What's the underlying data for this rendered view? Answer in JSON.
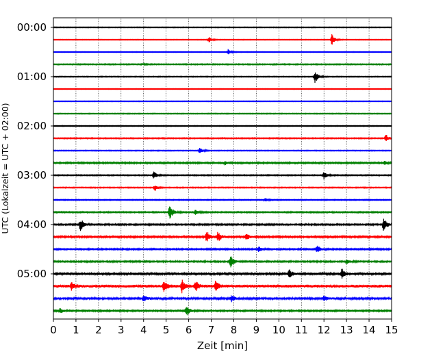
{
  "chart_data": {
    "type": "line",
    "title": "",
    "xlabel": "Zeit  [min]",
    "ylabel": "UTC (Lokalzeit = UTC + 02:00)",
    "xlim": [
      0,
      15
    ],
    "x_ticks": [
      "0",
      "1",
      "2",
      "3",
      "4",
      "5",
      "6",
      "7",
      "8",
      "9",
      "10",
      "11",
      "12",
      "13",
      "14",
      "15"
    ],
    "y_ticks": [
      "00:00",
      "01:00",
      "02:00",
      "03:00",
      "04:00",
      "05:00"
    ],
    "grid": {
      "x": true,
      "y": false
    },
    "trace_interval_minutes": 15,
    "trace_colors": [
      "#000000",
      "#ff0000",
      "#0000ff",
      "#008000"
    ],
    "traces": [
      {
        "start": "00:00",
        "color": "#000000",
        "noise": 0.35,
        "events": []
      },
      {
        "start": "00:15",
        "color": "#ff0000",
        "noise": 0.3,
        "events": [
          {
            "x": 6.9,
            "amp": 5
          },
          {
            "x": 12.35,
            "amp": 8
          }
        ]
      },
      {
        "start": "00:30",
        "color": "#0000ff",
        "noise": 0.3,
        "events": [
          {
            "x": 7.75,
            "amp": 4
          }
        ]
      },
      {
        "start": "00:45",
        "color": "#008000",
        "noise": 0.5,
        "events": [
          {
            "x": 3.9,
            "amp": 2
          }
        ]
      },
      {
        "start": "01:00",
        "color": "#000000",
        "noise": 0.4,
        "events": [
          {
            "x": 11.6,
            "amp": 10
          }
        ]
      },
      {
        "start": "01:15",
        "color": "#ff0000",
        "noise": 0.3,
        "events": []
      },
      {
        "start": "01:30",
        "color": "#0000ff",
        "noise": 0.3,
        "events": []
      },
      {
        "start": "01:45",
        "color": "#008000",
        "noise": 0.4,
        "events": []
      },
      {
        "start": "02:00",
        "color": "#000000",
        "noise": 0.35,
        "events": []
      },
      {
        "start": "02:15",
        "color": "#ff0000",
        "noise": 0.5,
        "events": [
          {
            "x": 14.75,
            "amp": 6
          }
        ]
      },
      {
        "start": "02:30",
        "color": "#0000ff",
        "noise": 0.4,
        "events": [
          {
            "x": 6.5,
            "amp": 5
          }
        ]
      },
      {
        "start": "02:45",
        "color": "#008000",
        "noise": 0.7,
        "events": [
          {
            "x": 7.6,
            "amp": 3
          },
          {
            "x": 14.7,
            "amp": 3
          }
        ]
      },
      {
        "start": "03:00",
        "color": "#000000",
        "noise": 0.5,
        "events": [
          {
            "x": 4.45,
            "amp": 6
          },
          {
            "x": 12.0,
            "amp": 6
          }
        ]
      },
      {
        "start": "03:15",
        "color": "#ff0000",
        "noise": 0.45,
        "events": [
          {
            "x": 4.5,
            "amp": 5
          }
        ]
      },
      {
        "start": "03:30",
        "color": "#0000ff",
        "noise": 0.45,
        "events": [
          {
            "x": 9.4,
            "amp": 3
          }
        ]
      },
      {
        "start": "03:45",
        "color": "#008000",
        "noise": 0.6,
        "events": [
          {
            "x": 5.15,
            "amp": 14
          },
          {
            "x": 6.3,
            "amp": 4
          }
        ]
      },
      {
        "start": "04:00",
        "color": "#000000",
        "noise": 0.7,
        "events": [
          {
            "x": 1.2,
            "amp": 10
          },
          {
            "x": 14.65,
            "amp": 11
          }
        ]
      },
      {
        "start": "04:15",
        "color": "#ff0000",
        "noise": 0.8,
        "events": [
          {
            "x": 6.8,
            "amp": 9
          },
          {
            "x": 7.3,
            "amp": 9
          },
          {
            "x": 8.55,
            "amp": 6
          }
        ]
      },
      {
        "start": "04:30",
        "color": "#0000ff",
        "noise": 0.7,
        "events": [
          {
            "x": 9.1,
            "amp": 4
          },
          {
            "x": 11.7,
            "amp": 6
          }
        ]
      },
      {
        "start": "04:45",
        "color": "#008000",
        "noise": 0.7,
        "events": [
          {
            "x": 7.85,
            "amp": 10
          },
          {
            "x": 13.0,
            "amp": 4
          }
        ]
      },
      {
        "start": "05:00",
        "color": "#000000",
        "noise": 0.9,
        "events": [
          {
            "x": 10.45,
            "amp": 8
          },
          {
            "x": 12.8,
            "amp": 8
          }
        ]
      },
      {
        "start": "05:15",
        "color": "#ff0000",
        "noise": 1.4,
        "events": [
          {
            "x": 0.8,
            "amp": 5
          },
          {
            "x": 4.9,
            "amp": 8
          },
          {
            "x": 5.7,
            "amp": 10
          },
          {
            "x": 6.3,
            "amp": 8
          },
          {
            "x": 7.2,
            "amp": 8
          }
        ]
      },
      {
        "start": "05:30",
        "color": "#0000ff",
        "noise": 1.0,
        "events": [
          {
            "x": 4.0,
            "amp": 5
          },
          {
            "x": 7.9,
            "amp": 5
          },
          {
            "x": 12.0,
            "amp": 4
          }
        ]
      },
      {
        "start": "05:45",
        "color": "#008000",
        "noise": 0.7,
        "events": [
          {
            "x": 0.3,
            "amp": 4
          },
          {
            "x": 5.9,
            "amp": 8
          }
        ]
      }
    ]
  }
}
